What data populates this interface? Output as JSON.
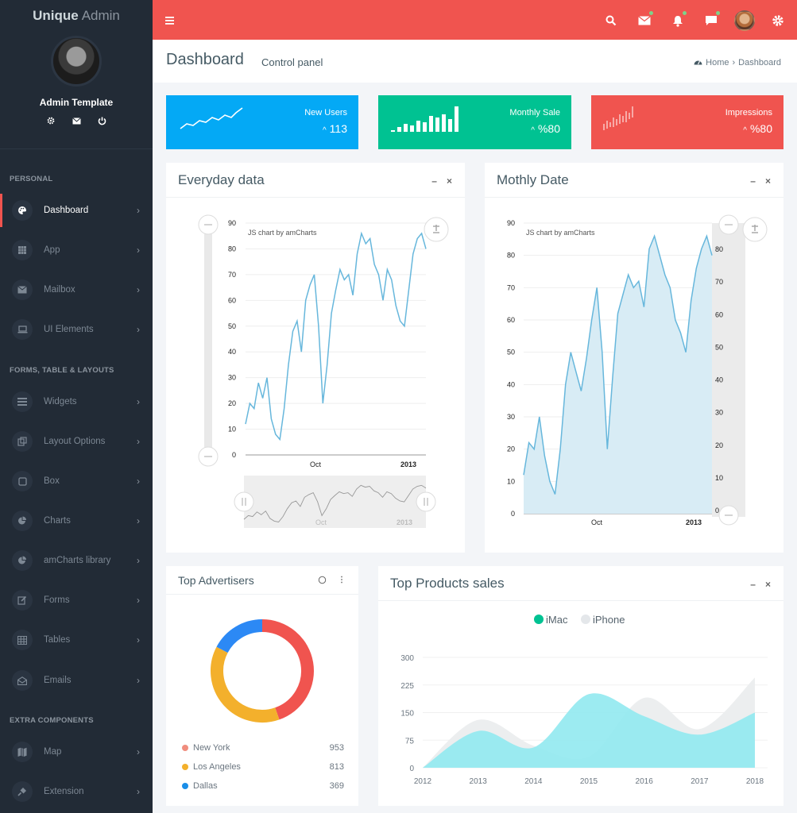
{
  "brand": {
    "bold": "Unique",
    "light": "Admin"
  },
  "user": {
    "name": "Admin Template"
  },
  "sidebar": {
    "sections": [
      "PERSONAL",
      "FORMS, TABLE & LAYOUTS",
      "EXTRA COMPONENTS"
    ],
    "items": [
      {
        "label": "Dashboard",
        "icon": "palette-icon"
      },
      {
        "label": "App",
        "icon": "grid-icon"
      },
      {
        "label": "Mailbox",
        "icon": "mail-icon"
      },
      {
        "label": "UI Elements",
        "icon": "laptop-icon"
      },
      {
        "label": "Widgets",
        "icon": "list-icon"
      },
      {
        "label": "Layout Options",
        "icon": "layout-icon"
      },
      {
        "label": "Box",
        "icon": "square-icon"
      },
      {
        "label": "Charts",
        "icon": "pie-chart-icon"
      },
      {
        "label": "amCharts library",
        "icon": "pie-chart-icon"
      },
      {
        "label": "Forms",
        "icon": "edit-icon"
      },
      {
        "label": "Tables",
        "icon": "table-icon"
      },
      {
        "label": "Emails",
        "icon": "envelope-open-icon"
      },
      {
        "label": "Map",
        "icon": "map-icon"
      },
      {
        "label": "Extension",
        "icon": "plug-icon"
      }
    ]
  },
  "header": {
    "title": "Dashboard",
    "subtitle": "Control panel",
    "breadcrumb": {
      "home": "Home",
      "current": "Dashboard"
    }
  },
  "stats": [
    {
      "label": "New Users",
      "value": "113",
      "color": "#04a9f5"
    },
    {
      "label": "Monthly Sale",
      "value": "%80",
      "color": "#00c292"
    },
    {
      "label": "Impressions",
      "value": "%80",
      "color": "#f0544f"
    }
  ],
  "colors": {
    "accent": "#f0544f",
    "sidebar": "#222b36",
    "line": "#67b7dc"
  },
  "cards": {
    "everyday": {
      "title": "Everyday data",
      "credit": "JS chart by amCharts"
    },
    "monthly": {
      "title": "Mothly Date",
      "credit": "JS chart by amCharts"
    },
    "advertisers": {
      "title": "Top Advertisers"
    },
    "products": {
      "title": "Top Products sales"
    }
  },
  "chart_data": [
    {
      "type": "line",
      "title": "",
      "ylim": [
        0,
        90
      ],
      "yticks": [
        0,
        10,
        20,
        30,
        40,
        50,
        60,
        70,
        80,
        90
      ],
      "xticks": [
        "Oct",
        "2013"
      ],
      "values": [
        12,
        20,
        18,
        28,
        22,
        30,
        14,
        8,
        6,
        18,
        35,
        48,
        52,
        40,
        60,
        66,
        70,
        50,
        20,
        35,
        55,
        64,
        72,
        68,
        70,
        62,
        78,
        86,
        82,
        84,
        74,
        70,
        60,
        72,
        68,
        58,
        52,
        50,
        64,
        78,
        84,
        86,
        80
      ]
    },
    {
      "type": "area",
      "title": "",
      "ylim": [
        0,
        90
      ],
      "yticks": [
        0,
        10,
        20,
        30,
        40,
        50,
        60,
        70,
        80,
        90
      ],
      "y2ticks": [
        0,
        10,
        20,
        30,
        40,
        50,
        60,
        70,
        80
      ],
      "xticks": [
        "Oct",
        "2013"
      ],
      "values": [
        12,
        22,
        20,
        30,
        18,
        10,
        6,
        20,
        40,
        50,
        44,
        38,
        48,
        60,
        70,
        50,
        20,
        42,
        62,
        68,
        74,
        70,
        72,
        64,
        82,
        86,
        80,
        74,
        70,
        60,
        56,
        50,
        66,
        76,
        82,
        86,
        80
      ]
    },
    {
      "type": "pie",
      "title": "",
      "slices": [
        {
          "label": "New York",
          "value": 953,
          "color": "#f0544f"
        },
        {
          "label": "Los Angeles",
          "value": 813,
          "color": "#f3b02c"
        },
        {
          "label": "Dallas",
          "value": 369,
          "color": "#2c89f5"
        }
      ]
    },
    {
      "type": "area",
      "title": "",
      "categories": [
        "2012",
        "2013",
        "2014",
        "2015",
        "2016",
        "2017",
        "2018"
      ],
      "ylim": [
        0,
        300
      ],
      "yticks": [
        0,
        75,
        150,
        225,
        300
      ],
      "series": [
        {
          "name": "iMac",
          "color": "#00c292",
          "fill": "#91e9f0",
          "values": [
            0,
            100,
            55,
            200,
            140,
            90,
            150
          ]
        },
        {
          "name": "iPhone",
          "color": "#d8dde0",
          "fill": "#eceeef",
          "values": [
            0,
            130,
            60,
            30,
            190,
            105,
            245
          ]
        }
      ]
    }
  ]
}
